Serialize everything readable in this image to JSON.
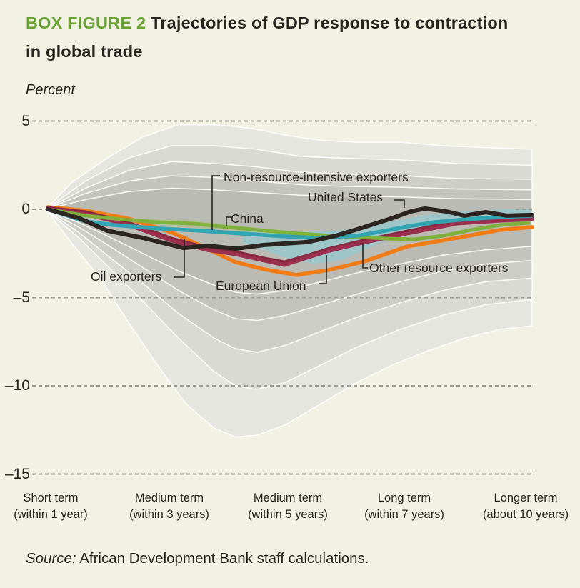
{
  "title": {
    "tag": "BOX FIGURE 2",
    "rest": " Trajectories of GDP response to contraction",
    "line2": "in global trade"
  },
  "y_axis": {
    "unit_label": "Percent"
  },
  "x_axis": {
    "labels": [
      {
        "line1": "Short term",
        "line2": "(within 1 year)"
      },
      {
        "line1": "Medium term",
        "line2": "(within 3 years)"
      },
      {
        "line1": "Medium term",
        "line2": "(within 5 years)"
      },
      {
        "line1": "Long term",
        "line2": "(within 7 years)"
      },
      {
        "line1": "Longer term",
        "line2": "(about 10 years)"
      }
    ]
  },
  "annotations": {
    "non_resource": "Non-resource-intensive exporters",
    "united_states": "United States",
    "china": "China",
    "oil": "Oil exporters",
    "eu": "European Union",
    "other": "Other resource exporters"
  },
  "source": {
    "prefix": "Source:",
    "text": " African Development Bank staff calculations."
  },
  "colors": {
    "background": "#f1f2e4",
    "title_green": "#69a233",
    "text_dark": "#29241f",
    "grid_dash": "#9b9c92",
    "band_stroke": "#ffffff",
    "cyan_ribbon": "rgba(134,206,216,0.55)",
    "green_ribbon": "rgba(160,195,95,0.35)"
  },
  "chart_data": {
    "type": "line",
    "title": "Trajectories of GDP response to contraction in global trade",
    "ylabel": "Percent",
    "ylim": [
      -15,
      5
    ],
    "y_ticks": [
      {
        "value": 5,
        "label": "5",
        "segments": [
          [
            45,
            748
          ]
        ]
      },
      {
        "value": 0,
        "label": "0",
        "segments": [
          [
            45,
            66
          ],
          [
            722,
            748
          ]
        ]
      },
      {
        "value": -5,
        "label": "–5",
        "segments": [
          [
            45,
            748
          ]
        ]
      },
      {
        "value": -10,
        "label": "–10",
        "segments": [
          [
            45,
            748
          ]
        ]
      },
      {
        "value": -15,
        "label": "–15",
        "segments": [
          [
            45,
            748
          ]
        ]
      }
    ],
    "x_categories": [
      "Short term (within 1 year)",
      "Medium term (within 3 years)",
      "Medium term (within 5 years)",
      "Long term (within 7 years)",
      "Longer term (about 10 years)"
    ],
    "category_values": {
      "United States": [
        0,
        -1.9,
        -1.95,
        -0.15,
        -0.3
      ],
      "Non-resource-intensive exporters": [
        0,
        -1.1,
        -1.55,
        -1.0,
        -0.35
      ],
      "China": [
        0,
        -0.8,
        -1.35,
        -1.7,
        -0.75
      ],
      "Oil exporters": [
        0,
        -1.3,
        -3.65,
        -2.15,
        -1.0
      ],
      "European Union": [
        0,
        -1.8,
        -3.2,
        -1.4,
        -0.55
      ],
      "Other resource exporters": [
        0,
        -1.7,
        -3.0,
        -1.3,
        -0.5
      ]
    },
    "bands": [
      {
        "fill": "#e5e6e0",
        "top": [
          [
            67,
            0.1
          ],
          [
            100,
            1.5
          ],
          [
            150,
            2.9
          ],
          [
            200,
            4.1
          ],
          [
            250,
            4.8
          ],
          [
            300,
            4.8
          ],
          [
            350,
            4.6
          ],
          [
            400,
            4.2
          ],
          [
            450,
            3.9
          ],
          [
            500,
            3.8
          ],
          [
            560,
            3.8
          ],
          [
            620,
            3.6
          ],
          [
            680,
            3.5
          ],
          [
            745,
            3.4
          ]
        ],
        "bottom": [
          [
            67,
            -0.15
          ],
          [
            100,
            -1.9
          ],
          [
            140,
            -3.9
          ],
          [
            180,
            -6.4
          ],
          [
            220,
            -8.8
          ],
          [
            260,
            -11.0
          ],
          [
            300,
            -12.4
          ],
          [
            330,
            -12.9
          ],
          [
            360,
            -12.8
          ],
          [
            400,
            -12.2
          ],
          [
            450,
            -11.0
          ],
          [
            500,
            -9.8
          ],
          [
            550,
            -8.8
          ],
          [
            600,
            -8.0
          ],
          [
            650,
            -7.3
          ],
          [
            700,
            -6.8
          ],
          [
            745,
            -6.6
          ]
        ]
      },
      {
        "fill": "#d9dad3",
        "top": [
          [
            67,
            0.08
          ],
          [
            120,
            1.6
          ],
          [
            180,
            2.9
          ],
          [
            240,
            3.6
          ],
          [
            300,
            3.6
          ],
          [
            360,
            3.4
          ],
          [
            420,
            3.0
          ],
          [
            480,
            2.9
          ],
          [
            560,
            2.8
          ],
          [
            640,
            2.6
          ],
          [
            745,
            2.5
          ]
        ],
        "bottom": [
          [
            67,
            -0.12
          ],
          [
            110,
            -1.6
          ],
          [
            150,
            -3.2
          ],
          [
            200,
            -5.2
          ],
          [
            250,
            -7.3
          ],
          [
            300,
            -9.2
          ],
          [
            330,
            -10.0
          ],
          [
            360,
            -10.2
          ],
          [
            400,
            -9.8
          ],
          [
            450,
            -8.8
          ],
          [
            500,
            -7.8
          ],
          [
            560,
            -6.8
          ],
          [
            620,
            -6.0
          ],
          [
            680,
            -5.4
          ],
          [
            745,
            -5.1
          ]
        ]
      },
      {
        "fill": "#cdcec7",
        "top": [
          [
            67,
            0.06
          ],
          [
            120,
            1.2
          ],
          [
            180,
            2.2
          ],
          [
            240,
            2.7
          ],
          [
            300,
            2.6
          ],
          [
            360,
            2.4
          ],
          [
            420,
            2.1
          ],
          [
            480,
            2.0
          ],
          [
            560,
            1.9
          ],
          [
            640,
            1.75
          ],
          [
            745,
            1.7
          ]
        ],
        "bottom": [
          [
            67,
            -0.1
          ],
          [
            110,
            -1.3
          ],
          [
            150,
            -2.6
          ],
          [
            200,
            -4.2
          ],
          [
            250,
            -5.9
          ],
          [
            300,
            -7.3
          ],
          [
            330,
            -7.9
          ],
          [
            360,
            -8.1
          ],
          [
            400,
            -7.7
          ],
          [
            450,
            -6.9
          ],
          [
            500,
            -6.1
          ],
          [
            560,
            -5.3
          ],
          [
            620,
            -4.6
          ],
          [
            680,
            -4.1
          ],
          [
            745,
            -3.9
          ]
        ]
      },
      {
        "fill": "#c3c4bd",
        "top": [
          [
            67,
            0.04
          ],
          [
            120,
            0.9
          ],
          [
            180,
            1.6
          ],
          [
            240,
            1.9
          ],
          [
            300,
            1.8
          ],
          [
            360,
            1.6
          ],
          [
            420,
            1.4
          ],
          [
            480,
            1.3
          ],
          [
            560,
            1.25
          ],
          [
            640,
            1.15
          ],
          [
            745,
            1.1
          ]
        ],
        "bottom": [
          [
            67,
            -0.08
          ],
          [
            110,
            -1.0
          ],
          [
            150,
            -2.0
          ],
          [
            200,
            -3.3
          ],
          [
            250,
            -4.6
          ],
          [
            300,
            -5.7
          ],
          [
            330,
            -6.2
          ],
          [
            360,
            -6.3
          ],
          [
            400,
            -6.0
          ],
          [
            450,
            -5.4
          ],
          [
            500,
            -4.8
          ],
          [
            560,
            -4.1
          ],
          [
            620,
            -3.5
          ],
          [
            680,
            -3.1
          ],
          [
            745,
            -2.9
          ]
        ]
      },
      {
        "fill": "#babbb4",
        "top": [
          [
            67,
            0.02
          ],
          [
            120,
            0.55
          ],
          [
            180,
            1.0
          ],
          [
            240,
            1.2
          ],
          [
            300,
            1.1
          ],
          [
            360,
            0.95
          ],
          [
            420,
            0.8
          ],
          [
            480,
            0.75
          ],
          [
            560,
            0.7
          ],
          [
            640,
            0.6
          ],
          [
            745,
            0.55
          ]
        ],
        "bottom": [
          [
            67,
            -0.06
          ],
          [
            110,
            -0.75
          ],
          [
            150,
            -1.5
          ],
          [
            200,
            -2.5
          ],
          [
            250,
            -3.5
          ],
          [
            300,
            -4.3
          ],
          [
            330,
            -4.7
          ],
          [
            360,
            -4.8
          ],
          [
            400,
            -4.6
          ],
          [
            450,
            -4.1
          ],
          [
            500,
            -3.6
          ],
          [
            560,
            -3.1
          ],
          [
            620,
            -2.6
          ],
          [
            680,
            -2.3
          ],
          [
            745,
            -2.1
          ]
        ]
      }
    ],
    "ribbons": [
      {
        "name": "cyan-band",
        "fillKey": "cyan_ribbon",
        "top": [
          [
            340,
            -1.05
          ],
          [
            420,
            -1.3
          ],
          [
            480,
            -1.2
          ],
          [
            540,
            -0.75
          ],
          [
            600,
            -0.3
          ],
          [
            660,
            -0.08
          ],
          [
            745,
            0.06
          ]
        ],
        "bottom": [
          [
            745,
            -0.6
          ],
          [
            660,
            -0.8
          ],
          [
            600,
            -1.1
          ],
          [
            540,
            -1.75
          ],
          [
            480,
            -2.85
          ],
          [
            440,
            -3.1
          ],
          [
            400,
            -2.75
          ],
          [
            340,
            -1.9
          ]
        ]
      },
      {
        "name": "green-band",
        "fillKey": "green_ribbon",
        "top": [
          [
            200,
            -0.55
          ],
          [
            260,
            -0.6
          ],
          [
            320,
            -0.85
          ],
          [
            380,
            -1.15
          ],
          [
            440,
            -1.45
          ]
        ],
        "bottom": [
          [
            440,
            -1.75
          ],
          [
            380,
            -1.5
          ],
          [
            320,
            -1.2
          ],
          [
            260,
            -1.0
          ],
          [
            200,
            -0.85
          ]
        ]
      }
    ],
    "series": [
      {
        "name": "Oil exporters",
        "color": "#f17c15",
        "width": 5.5,
        "points": [
          [
            67,
            0.12
          ],
          [
            120,
            -0.08
          ],
          [
            180,
            -0.53
          ],
          [
            240,
            -1.3
          ],
          [
            290,
            -2.23
          ],
          [
            330,
            -3.0
          ],
          [
            370,
            -3.4
          ],
          [
            415,
            -3.72
          ],
          [
            460,
            -3.44
          ],
          [
            510,
            -2.96
          ],
          [
            570,
            -2.11
          ],
          [
            640,
            -1.62
          ],
          [
            700,
            -1.17
          ],
          [
            745,
            -1.01
          ]
        ]
      },
      {
        "name": "Other resource exporters",
        "color": "#8a2a40",
        "width": 5,
        "points": [
          [
            67,
            0.08
          ],
          [
            120,
            -0.16
          ],
          [
            180,
            -0.77
          ],
          [
            240,
            -1.66
          ],
          [
            290,
            -2.19
          ],
          [
            330,
            -2.43
          ],
          [
            370,
            -2.79
          ],
          [
            398,
            -3.0
          ],
          [
            430,
            -2.63
          ],
          [
            458,
            -2.27
          ],
          [
            508,
            -1.78
          ],
          [
            570,
            -1.26
          ],
          [
            640,
            -0.69
          ],
          [
            700,
            -0.53
          ],
          [
            745,
            -0.45
          ]
        ]
      },
      {
        "name": "European Union",
        "color": "#9c3050",
        "width": 5,
        "points": [
          [
            67,
            0.04
          ],
          [
            120,
            -0.28
          ],
          [
            180,
            -0.89
          ],
          [
            240,
            -1.78
          ],
          [
            290,
            -2.31
          ],
          [
            330,
            -2.55
          ],
          [
            370,
            -2.91
          ],
          [
            398,
            -3.16
          ],
          [
            430,
            -2.75
          ],
          [
            458,
            -2.39
          ],
          [
            508,
            -1.9
          ],
          [
            570,
            -1.38
          ],
          [
            640,
            -0.81
          ],
          [
            700,
            -0.65
          ],
          [
            745,
            -0.57
          ]
        ]
      },
      {
        "name": "China",
        "color": "#7fb13c",
        "width": 5,
        "points": [
          [
            67,
            0.0
          ],
          [
            120,
            -0.36
          ],
          [
            170,
            -0.57
          ],
          [
            220,
            -0.73
          ],
          [
            270,
            -0.81
          ],
          [
            310,
            -0.97
          ],
          [
            360,
            -1.17
          ],
          [
            420,
            -1.38
          ],
          [
            480,
            -1.54
          ],
          [
            540,
            -1.66
          ],
          [
            580,
            -1.7
          ],
          [
            620,
            -1.5
          ],
          [
            660,
            -1.17
          ],
          [
            700,
            -0.89
          ],
          [
            740,
            -0.77
          ]
        ]
      },
      {
        "name": "Non-resource-intensive exporters",
        "color": "#31a5b1",
        "width": 5.5,
        "points": [
          [
            67,
            0.0
          ],
          [
            120,
            -0.69
          ],
          [
            160,
            -0.89
          ],
          [
            220,
            -1.09
          ],
          [
            280,
            -1.21
          ],
          [
            340,
            -1.38
          ],
          [
            400,
            -1.54
          ],
          [
            440,
            -1.62
          ],
          [
            500,
            -1.5
          ],
          [
            540,
            -1.21
          ],
          [
            570,
            -0.97
          ],
          [
            610,
            -0.73
          ],
          [
            640,
            -0.61
          ],
          [
            680,
            -0.49
          ],
          [
            745,
            -0.36
          ]
        ]
      },
      {
        "name": "United States",
        "color": "#2c2522",
        "width": 6,
        "points": [
          [
            67,
            0.0
          ],
          [
            110,
            -0.49
          ],
          [
            150,
            -1.21
          ],
          [
            200,
            -1.62
          ],
          [
            257,
            -2.19
          ],
          [
            290,
            -2.06
          ],
          [
            330,
            -2.23
          ],
          [
            370,
            -2.02
          ],
          [
            400,
            -1.94
          ],
          [
            430,
            -1.86
          ],
          [
            470,
            -1.5
          ],
          [
            510,
            -1.01
          ],
          [
            550,
            -0.49
          ],
          [
            575,
            -0.12
          ],
          [
            595,
            0.04
          ],
          [
            625,
            -0.12
          ],
          [
            650,
            -0.36
          ],
          [
            680,
            -0.16
          ],
          [
            710,
            -0.36
          ],
          [
            745,
            -0.32
          ]
        ]
      }
    ],
    "legend_position": "labels-on-chart",
    "grid": "dashed-horizontal"
  }
}
